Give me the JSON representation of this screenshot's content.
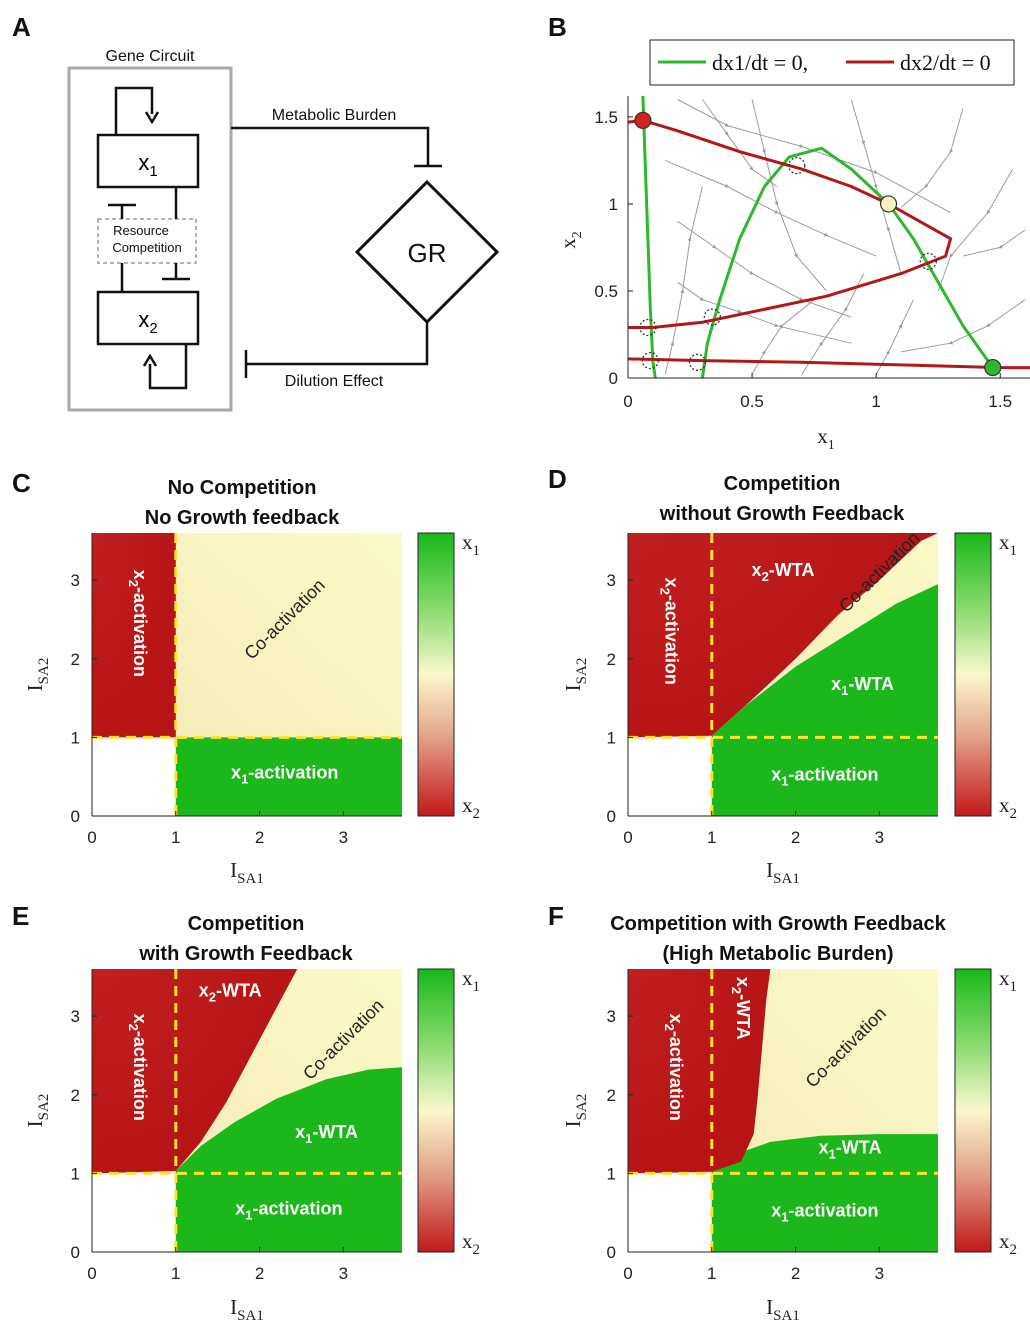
{
  "panel_labels": [
    "A",
    "B",
    "C",
    "D",
    "E",
    "F"
  ],
  "diagram_a": {
    "circuit_label": "Gene Circuit",
    "x1": "x",
    "x1_sub": "1",
    "x2": "x",
    "x2_sub": "2",
    "competition_line1": "Resource",
    "competition_line2": "Competition",
    "burden": "Metabolic Burden",
    "gr": "GR",
    "dilution": "Dilution Effect"
  },
  "chart_data": [
    {
      "panel": "B",
      "type": "line",
      "legend": [
        "dx1/dt = 0,",
        "dx2/dt = 0"
      ],
      "legend_placement": "top",
      "xlabel": "x",
      "xlabel_sub": "1",
      "ylabel": "x",
      "ylabel_sub": "2",
      "xlim": [
        0,
        1.62
      ],
      "ylim": [
        0,
        1.62
      ],
      "xticks": [
        "0",
        "0.5",
        "1",
        "1.5"
      ],
      "yticks": [
        "0",
        "0.5",
        "1",
        "1.5"
      ],
      "series": [
        {
          "name": "dx1/dt = 0",
          "color": "#2db82d",
          "branches": [
            [
              [
                0.06,
                1.62
              ],
              [
                0.07,
                1.2
              ],
              [
                0.08,
                0.8
              ],
              [
                0.09,
                0.4
              ],
              [
                0.1,
                0.1
              ],
              [
                0.11,
                0.0
              ]
            ],
            [
              [
                0.3,
                0.0
              ],
              [
                0.32,
                0.2
              ],
              [
                0.37,
                0.45
              ],
              [
                0.45,
                0.8
              ],
              [
                0.55,
                1.1
              ],
              [
                0.65,
                1.27
              ],
              [
                0.78,
                1.32
              ],
              [
                0.9,
                1.2
              ],
              [
                1.05,
                1.0
              ],
              [
                1.15,
                0.8
              ],
              [
                1.25,
                0.55
              ],
              [
                1.35,
                0.3
              ],
              [
                1.45,
                0.1
              ],
              [
                1.5,
                0.05
              ]
            ]
          ]
        },
        {
          "name": "dx2/dt = 0",
          "color": "#b31818",
          "branches": [
            [
              [
                0,
                1.47
              ],
              [
                0.06,
                1.48
              ],
              [
                0.2,
                1.42
              ],
              [
                0.45,
                1.3
              ],
              [
                0.7,
                1.2
              ],
              [
                0.9,
                1.1
              ],
              [
                1.05,
                1.0
              ],
              [
                1.2,
                0.88
              ],
              [
                1.3,
                0.8
              ],
              [
                1.28,
                0.7
              ],
              [
                1.1,
                0.6
              ],
              [
                0.8,
                0.47
              ],
              [
                0.5,
                0.38
              ],
              [
                0.3,
                0.32
              ],
              [
                0.1,
                0.29
              ],
              [
                0,
                0.29
              ]
            ],
            [
              [
                0,
                0.11
              ],
              [
                0.3,
                0.1
              ],
              [
                0.7,
                0.09
              ],
              [
                1.1,
                0.075
              ],
              [
                1.5,
                0.06
              ],
              [
                1.62,
                0.06
              ]
            ]
          ]
        }
      ],
      "points": [
        {
          "x": 0.06,
          "y": 1.48,
          "kind": "stable",
          "color": "#d42020"
        },
        {
          "x": 1.05,
          "y": 1.0,
          "kind": "stable",
          "color": "#f6f4c0"
        },
        {
          "x": 1.47,
          "y": 0.06,
          "kind": "stable",
          "color": "#2db82d"
        },
        {
          "x": 0.68,
          "y": 1.22,
          "kind": "unstable"
        },
        {
          "x": 1.21,
          "y": 0.67,
          "kind": "unstable"
        },
        {
          "x": 0.34,
          "y": 0.35,
          "kind": "unstable"
        },
        {
          "x": 0.08,
          "y": 0.29,
          "kind": "unstable"
        },
        {
          "x": 0.28,
          "y": 0.09,
          "kind": "unstable"
        },
        {
          "x": 0.09,
          "y": 0.1,
          "kind": "unstable"
        }
      ]
    },
    {
      "panel": "C",
      "type": "heatmap",
      "title": [
        "No Competition",
        "No Growth feedback"
      ],
      "xlabel": "I",
      "xlabel_sub": "SA1",
      "ylabel": "I",
      "ylabel_sub": "SA2",
      "xlim": [
        0,
        3.7
      ],
      "ylim": [
        0,
        3.6
      ],
      "xticks": [
        "0",
        "1",
        "2",
        "3"
      ],
      "yticks": [
        "0",
        "1",
        "2",
        "3"
      ],
      "colorbar": {
        "top": "x",
        "top_sub": "1",
        "bottom": "x",
        "bottom_sub": "2"
      },
      "regions": [
        {
          "label": "x",
          "sub": "2",
          "suffix": "-activation",
          "x": 0.5,
          "y": 2.45,
          "rotate": 90,
          "light": true
        },
        {
          "label": "Co-activation",
          "x": 2.35,
          "y": 2.45,
          "rotate": -45,
          "light": false
        },
        {
          "label": "x",
          "sub": "1",
          "suffix": "-activation",
          "x": 2.3,
          "y": 0.48,
          "rotate": 0,
          "light": true
        }
      ],
      "green_boundary": [
        [
          1,
          1
        ],
        [
          3.7,
          1
        ]
      ],
      "red_boundary": [
        [
          1,
          1
        ],
        [
          1,
          3.6
        ]
      ]
    },
    {
      "panel": "D",
      "type": "heatmap",
      "title": [
        "Competition",
        "without Growth Feedback"
      ],
      "xlabel": "I",
      "xlabel_sub": "SA1",
      "ylabel": "I",
      "ylabel_sub": "SA2",
      "xlim": [
        0,
        3.7
      ],
      "ylim": [
        0,
        3.6
      ],
      "xticks": [
        "0",
        "1",
        "2",
        "3"
      ],
      "yticks": [
        "0",
        "1",
        "2",
        "3"
      ],
      "colorbar": {
        "top": "x",
        "top_sub": "1",
        "bottom": "x",
        "bottom_sub": "2"
      },
      "regions": [
        {
          "label": "x",
          "sub": "2",
          "suffix": "-activation",
          "x": 0.45,
          "y": 2.35,
          "rotate": 90,
          "light": true
        },
        {
          "label": "x",
          "sub": "2",
          "suffix": "-WTA",
          "x": 1.85,
          "y": 3.05,
          "rotate": 0,
          "light": true
        },
        {
          "label": "Co-activation",
          "x": 3.05,
          "y": 3.05,
          "rotate": -45,
          "light": false
        },
        {
          "label": "x",
          "sub": "1",
          "suffix": "-WTA",
          "x": 2.8,
          "y": 1.6,
          "rotate": 0,
          "light": true
        },
        {
          "label": "x",
          "sub": "1",
          "suffix": "-activation",
          "x": 2.35,
          "y": 0.45,
          "rotate": 0,
          "light": true
        }
      ],
      "green_boundary": [
        [
          1,
          1.02
        ],
        [
          1.4,
          1.4
        ],
        [
          2,
          1.9
        ],
        [
          2.6,
          2.3
        ],
        [
          3.2,
          2.7
        ],
        [
          3.7,
          2.95
        ]
      ],
      "red_boundary": [
        [
          1,
          1.02
        ],
        [
          1.5,
          1.5
        ],
        [
          2,
          2.0
        ],
        [
          2.5,
          2.55
        ],
        [
          3,
          3.0
        ],
        [
          3.5,
          3.5
        ],
        [
          3.7,
          3.6
        ]
      ]
    },
    {
      "panel": "E",
      "type": "heatmap",
      "title": [
        "Competition",
        "with Growth Feedback"
      ],
      "xlabel": "I",
      "xlabel_sub": "SA1",
      "ylabel": "I",
      "ylabel_sub": "SA2",
      "xlim": [
        0,
        3.7
      ],
      "ylim": [
        0,
        3.6
      ],
      "xticks": [
        "0",
        "1",
        "2",
        "3"
      ],
      "yticks": [
        "0",
        "1",
        "2",
        "3"
      ],
      "colorbar": {
        "top": "x",
        "top_sub": "1",
        "bottom": "x",
        "bottom_sub": "2"
      },
      "regions": [
        {
          "label": "x",
          "sub": "2",
          "suffix": "-activation",
          "x": 0.5,
          "y": 2.35,
          "rotate": 90,
          "light": true
        },
        {
          "label": "x",
          "sub": "2",
          "suffix": "-WTA",
          "x": 1.65,
          "y": 3.25,
          "rotate": 0,
          "light": true
        },
        {
          "label": "Co-activation",
          "x": 3.05,
          "y": 2.65,
          "rotate": -45,
          "light": false
        },
        {
          "label": "x",
          "sub": "1",
          "suffix": "-WTA",
          "x": 2.8,
          "y": 1.45,
          "rotate": 0,
          "light": true
        },
        {
          "label": "x",
          "sub": "1",
          "suffix": "-activation",
          "x": 2.35,
          "y": 0.48,
          "rotate": 0,
          "light": true
        }
      ],
      "green_boundary": [
        [
          1,
          1.03
        ],
        [
          1.3,
          1.35
        ],
        [
          1.7,
          1.65
        ],
        [
          2.2,
          1.95
        ],
        [
          2.8,
          2.2
        ],
        [
          3.3,
          2.32
        ],
        [
          3.7,
          2.35
        ]
      ],
      "red_boundary": [
        [
          1,
          1.03
        ],
        [
          1.3,
          1.4
        ],
        [
          1.6,
          1.9
        ],
        [
          1.9,
          2.5
        ],
        [
          2.2,
          3.1
        ],
        [
          2.45,
          3.6
        ]
      ]
    },
    {
      "panel": "F",
      "type": "heatmap",
      "title": [
        "Competition with Growth Feedback",
        "(High Metabolic Burden)"
      ],
      "xlabel": "I",
      "xlabel_sub": "SA1",
      "ylabel": "I",
      "ylabel_sub": "SA2",
      "xlim": [
        0,
        3.7
      ],
      "ylim": [
        0,
        3.6
      ],
      "xticks": [
        "0",
        "1",
        "2",
        "3"
      ],
      "yticks": [
        "0",
        "1",
        "2",
        "3"
      ],
      "colorbar": {
        "top": "x",
        "top_sub": "1",
        "bottom": "x",
        "bottom_sub": "2"
      },
      "regions": [
        {
          "label": "x",
          "sub": "2",
          "suffix": "-activation",
          "x": 0.5,
          "y": 2.35,
          "rotate": 90,
          "light": true
        },
        {
          "label": "x",
          "sub": "2",
          "suffix": "-WTA",
          "x": 1.3,
          "y": 3.1,
          "rotate": 90,
          "light": true
        },
        {
          "label": "Co-activation",
          "x": 2.65,
          "y": 2.55,
          "rotate": -45,
          "light": false
        },
        {
          "label": "x",
          "sub": "1",
          "suffix": "-WTA",
          "x": 2.65,
          "y": 1.25,
          "rotate": 0,
          "light": true
        },
        {
          "label": "x",
          "sub": "1",
          "suffix": "-activation",
          "x": 2.35,
          "y": 0.45,
          "rotate": 0,
          "light": true
        }
      ],
      "green_boundary": [
        [
          1,
          1.02
        ],
        [
          1.3,
          1.25
        ],
        [
          1.7,
          1.4
        ],
        [
          2.3,
          1.48
        ],
        [
          3,
          1.5
        ],
        [
          3.7,
          1.5
        ]
      ],
      "red_boundary": [
        [
          1,
          1.02
        ],
        [
          1.35,
          1.15
        ],
        [
          1.5,
          1.5
        ],
        [
          1.55,
          2.0
        ],
        [
          1.6,
          2.6
        ],
        [
          1.65,
          3.2
        ],
        [
          1.7,
          3.6
        ]
      ]
    }
  ]
}
